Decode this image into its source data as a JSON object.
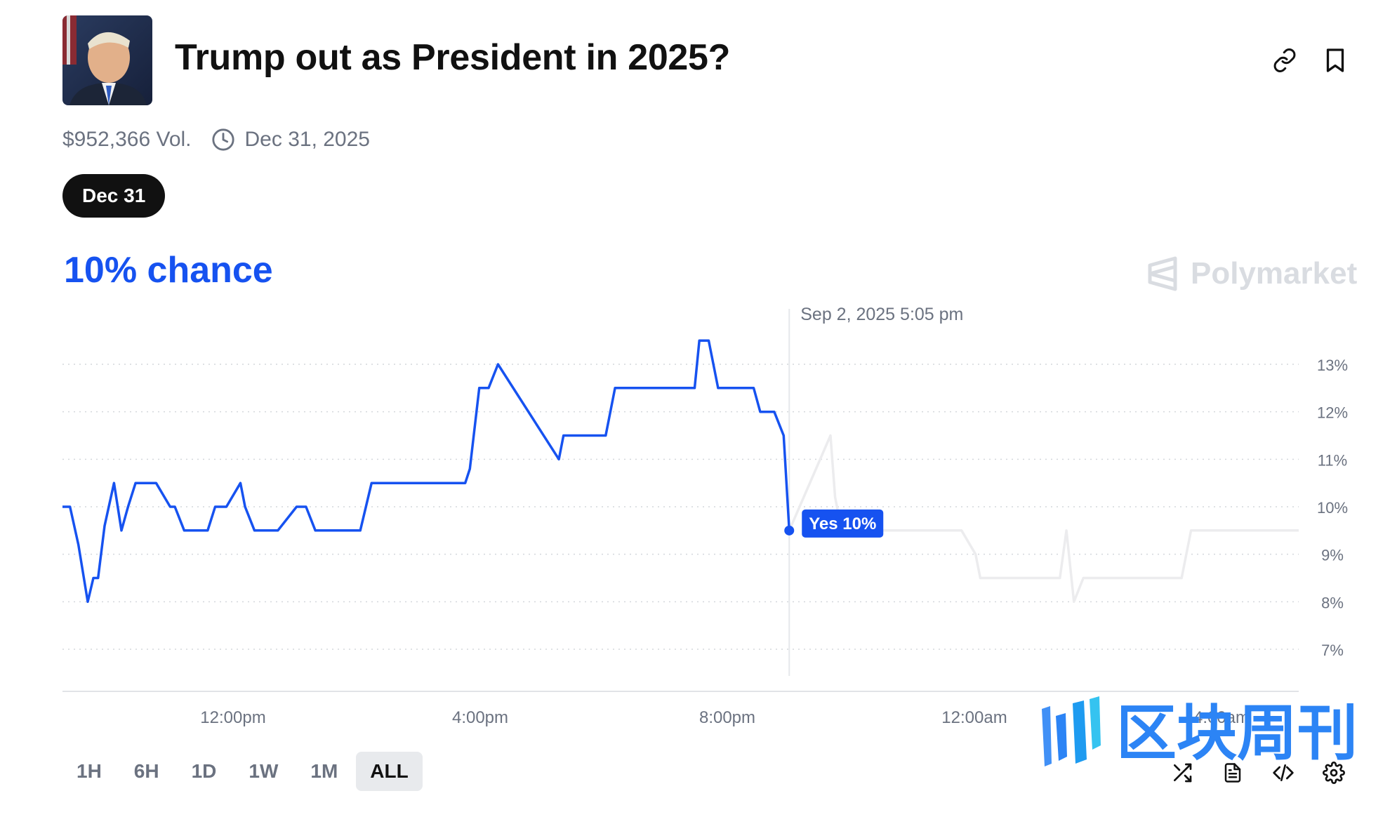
{
  "market": {
    "title": "Trump out as President in 2025?",
    "volume": "$952,366 Vol.",
    "end_date": "Dec 31, 2025",
    "date_pill": "Dec 31",
    "chance": "10% chance",
    "brand": "Polymarket"
  },
  "header_icons": [
    "link-icon",
    "bookmark-icon"
  ],
  "toolbar_icons": [
    "shuffle-icon",
    "document-icon",
    "embed-code-icon",
    "gear-icon"
  ],
  "time_ranges": [
    "1H",
    "6H",
    "1D",
    "1W",
    "1M",
    "ALL"
  ],
  "active_range": "ALL",
  "watermark": "区块周刊",
  "colors": {
    "accent": "#1652f0",
    "future_line": "#ececee",
    "pill_bg": "#111111"
  },
  "chart_data": {
    "type": "line",
    "hover_label": "Sep 2, 2025 5:05 pm",
    "tooltip": "Yes 10%",
    "x_ticks": [
      "12:00pm",
      "4:00pm",
      "8:00pm",
      "12:00am",
      "4:00am"
    ],
    "y_ticks": [
      "13%",
      "12%",
      "11%",
      "10%",
      "9%",
      "8%",
      "7%"
    ],
    "ylim": [
      6.6,
      13.2
    ],
    "grid": "dotted horizontal",
    "series": [
      {
        "values_x_hours_from_chart_start": [
          0,
          0.08,
          0.17,
          0.27,
          0.33,
          0.38,
          0.45,
          0.55,
          0.63,
          0.7,
          0.78,
          0.87,
          1.0,
          1.15,
          1.2,
          1.3,
          1.43,
          1.55,
          1.63,
          1.75,
          1.9,
          1.95,
          2.05,
          2.14,
          2.22,
          2.3,
          2.5,
          2.6,
          2.7,
          2.8,
          3.18,
          3.3,
          3.35,
          3.45,
          3.6,
          3.68,
          4.3,
          4.35,
          4.45,
          4.5,
          4.55,
          4.65,
          5.3,
          5.35,
          5.45,
          5.6,
          5.8,
          5.9,
          6.05,
          6.2,
          6.75,
          6.8,
          6.9,
          7.0,
          7.1,
          7.28,
          7.38,
          7.45,
          7.6,
          7.7,
          8.2,
          8.25,
          8.32,
          8.4,
          8.45,
          8.5,
          8.85,
          8.95,
          9.3,
          9.42,
          9.52,
          9.6,
          9.75,
          9.8,
          9.95,
          10.02,
          10.06,
          10.12,
          10.2,
          10.32,
          10.37,
          10.45,
          10.65,
          10.72,
          10.8,
          10.9,
          11.05,
          11.12,
          11.18,
          11.25,
          11.3,
          11.35,
          11.45,
          11.52,
          11.58,
          11.66,
          11.95,
          12.05,
          13.1,
          13.2
        ],
        "values": [
          10.0,
          10.0,
          9.2,
          8.0,
          8.5,
          8.5,
          9.6,
          10.5,
          9.5,
          10.0,
          10.5,
          10.5,
          10.5,
          10.0,
          10.0,
          9.5,
          9.5,
          9.5,
          10.0,
          10.0,
          10.5,
          10.0,
          9.5,
          9.5,
          9.5,
          9.5,
          10.0,
          10.0,
          9.5,
          9.5,
          9.5,
          10.5,
          10.5,
          10.5,
          10.5,
          10.5,
          10.5,
          10.8,
          12.5,
          12.5,
          12.5,
          13.0,
          11.0,
          11.5,
          11.5,
          11.5,
          11.5,
          12.5,
          12.5,
          12.5,
          12.5,
          13.5,
          13.5,
          12.5,
          12.5,
          12.5,
          12.5,
          12.0,
          12.0,
          11.5,
          11.5,
          10.2,
          9.5,
          9.5,
          9.5,
          9.5,
          9.5,
          9.5,
          9.5,
          9.5,
          9.5,
          9.5,
          9.0,
          8.5,
          8.5,
          8.5,
          8.5,
          8.5,
          8.5,
          8.5,
          8.5,
          8.5,
          8.5,
          9.5,
          8.0,
          8.5,
          8.5,
          8.5,
          8.5,
          8.5,
          8.5,
          8.5,
          8.5,
          8.5,
          8.5,
          8.5,
          8.5,
          9.5,
          9.5,
          9.5
        ]
      }
    ]
  }
}
